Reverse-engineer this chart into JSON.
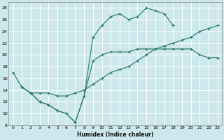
{
  "xlabel": "Humidex (Indice chaleur)",
  "bg_color": "#cde8ec",
  "grid_color": "#ffffff",
  "line_color": "#2d7a6a",
  "xlim": [
    -0.5,
    23.5
  ],
  "ylim": [
    8,
    29
  ],
  "xticks": [
    0,
    1,
    2,
    3,
    4,
    5,
    6,
    7,
    8,
    9,
    10,
    11,
    12,
    13,
    14,
    15,
    16,
    17,
    18,
    19,
    20,
    21,
    22,
    23
  ],
  "yticks": [
    8,
    10,
    12,
    14,
    16,
    18,
    20,
    22,
    24,
    26,
    28
  ],
  "curve1_x": [
    0,
    1,
    2,
    3,
    4,
    5,
    6,
    7,
    8,
    9,
    10,
    11,
    12,
    13,
    14,
    15,
    16,
    17,
    18
  ],
  "curve1_y": [
    17,
    14.5,
    13.5,
    12,
    11.5,
    10.5,
    10,
    8.5,
    13,
    23,
    25,
    26.5,
    27,
    26,
    26.5,
    28,
    27.5,
    27,
    25
  ],
  "curve2_x": [
    1,
    2,
    3,
    4,
    5,
    6,
    7,
    8,
    9,
    10,
    11,
    12,
    13,
    14,
    15,
    16,
    17,
    18,
    19,
    20,
    21,
    22,
    23
  ],
  "curve2_y": [
    14.5,
    13.5,
    13.5,
    13.5,
    13,
    13,
    13.5,
    14,
    15,
    16,
    17,
    17.5,
    18,
    19,
    20,
    21,
    21.5,
    22,
    22.5,
    23,
    24,
    24.5,
    25
  ],
  "curve3_x": [
    1,
    2,
    3,
    4,
    5,
    6,
    7,
    8,
    9,
    10,
    11,
    12,
    13,
    14,
    15,
    16,
    17,
    18,
    19,
    20,
    21,
    22,
    23
  ],
  "curve3_y": [
    14.5,
    13.5,
    12,
    11.5,
    10.5,
    10,
    8.5,
    13,
    19,
    20,
    20.5,
    20.5,
    20.5,
    21,
    21,
    21,
    21,
    21,
    21,
    21,
    20,
    19.5,
    19.5
  ]
}
